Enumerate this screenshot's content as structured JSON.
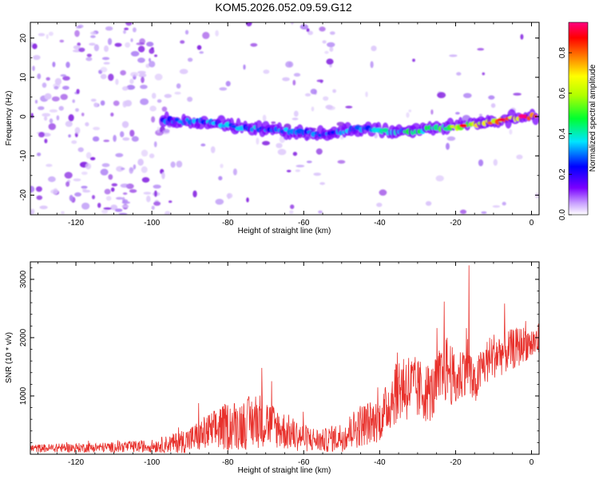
{
  "title": "KOM5.2026.052.09.59.G12",
  "colors": {
    "signal_line": "#e8312c",
    "frame": "#000000",
    "background": "#ffffff"
  },
  "chart_data": [
    {
      "type": "heatmap",
      "title": "",
      "xlabel": "Height of straight line (km)",
      "ylabel": "Frequency (Hz)",
      "xlim": [
        -132,
        2
      ],
      "ylim": [
        -25,
        24
      ],
      "xticks": [
        -120,
        -100,
        -80,
        -60,
        -40,
        -20,
        0
      ],
      "yticks": [
        -20,
        -10,
        0,
        10,
        20
      ],
      "xtick_labels": [
        "-120",
        "-100",
        "-80",
        "-60",
        "-40",
        "-20",
        "0"
      ],
      "ytick_labels": [
        "-20",
        "-10",
        "0",
        "10",
        "20"
      ],
      "ridge": {
        "x": [
          -95,
          -85,
          -75,
          -65,
          -55,
          -45,
          -35,
          -25,
          -15,
          -5,
          0
        ],
        "y": [
          -1,
          -1.5,
          -3,
          -3.5,
          -4.5,
          -3,
          -4,
          -3,
          -2,
          -0.5,
          0
        ],
        "amplitude": [
          0.25,
          0.3,
          0.3,
          0.3,
          0.25,
          0.3,
          0.35,
          0.45,
          0.6,
          0.75,
          0.95
        ]
      },
      "colorbar": {
        "label": "Normalized spectral amplitude",
        "range": [
          0,
          0.95
        ],
        "ticks": [
          0.0,
          0.2,
          0.4,
          0.6,
          0.8
        ],
        "tick_labels": [
          "0.0",
          "0.2",
          "0.4",
          "0.6",
          "0.8"
        ],
        "colormap": [
          "#ffffff",
          "#7a00ff",
          "#0000ff",
          "#00e5ff",
          "#00ff30",
          "#b0ff00",
          "#ffff00",
          "#ff8000",
          "#ff0000",
          "#ff0080"
        ]
      }
    },
    {
      "type": "line",
      "title": "",
      "xlabel": "Height of straight line (km)",
      "ylabel": "SNR (10 * v/v)",
      "xlim": [
        -132,
        2
      ],
      "ylim": [
        0,
        3300
      ],
      "xticks": [
        -120,
        -100,
        -80,
        -60,
        -40,
        -20,
        0
      ],
      "yticks": [
        1000,
        2000,
        3000
      ],
      "xtick_labels": [
        "-120",
        "-100",
        "-80",
        "-60",
        "-40",
        "-20",
        "0"
      ],
      "ytick_labels": [
        "1000",
        "2000",
        "3000"
      ],
      "series": [
        {
          "name": "SNR",
          "x": [
            -132,
            -120,
            -110,
            -100,
            -95,
            -90,
            -85,
            -80,
            -75,
            -72,
            -70,
            -65,
            -60,
            -55,
            -50,
            -45,
            -42,
            -40,
            -38,
            -36,
            -34,
            -30,
            -26,
            -24,
            -22,
            -20,
            -18,
            -17,
            -16,
            -15,
            -13,
            -10,
            -7,
            -5,
            -3,
            -2,
            0,
            2
          ],
          "mean": [
            100,
            110,
            120,
            140,
            180,
            250,
            380,
            480,
            530,
            600,
            550,
            400,
            280,
            230,
            300,
            500,
            550,
            580,
            800,
            1100,
            1200,
            1100,
            1050,
            1300,
            1500,
            1200,
            1450,
            1700,
            1300,
            1150,
            1500,
            1700,
            1750,
            1800,
            1850,
            1900,
            1900,
            1950
          ],
          "amplitude": [
            70,
            80,
            90,
            110,
            160,
            230,
            330,
            420,
            450,
            500,
            420,
            330,
            240,
            200,
            260,
            380,
            380,
            360,
            450,
            600,
            650,
            550,
            500,
            550,
            600,
            450,
            500,
            600,
            500,
            350,
            400,
            400,
            380,
            350,
            350,
            300,
            300,
            300
          ],
          "peaks": [
            {
              "x": -71,
              "value": 1480
            },
            {
              "x": -23,
              "value": 2620
            },
            {
              "x": -16.5,
              "value": 3240
            }
          ]
        }
      ]
    }
  ]
}
